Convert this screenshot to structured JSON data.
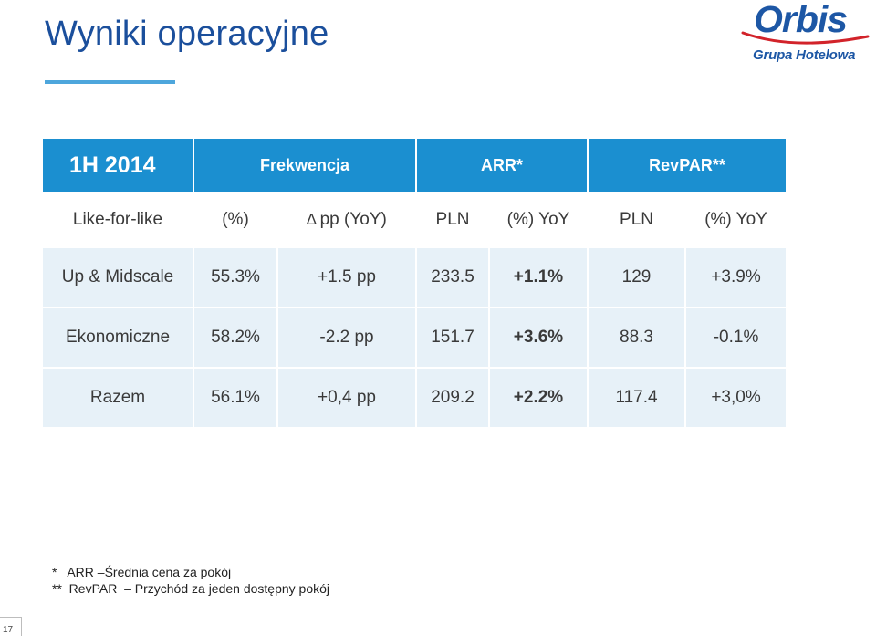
{
  "title": "Wyniki operacyjne",
  "logo": {
    "name": "Orbis",
    "subtitle": "Grupa Hotelowa"
  },
  "colors": {
    "title": "#1b4f9c",
    "accent_line": "#4da6dc",
    "header_bg": "#1b8fd0",
    "row_bg": "#e7f1f8",
    "logo_blue": "#1d57a5",
    "logo_red": "#d2232a"
  },
  "table": {
    "period": "1H 2014",
    "groups": [
      "Frekwencja",
      "ARR*",
      "RevPAR**"
    ],
    "subheader": {
      "segment_label": "Like-for-like",
      "columns": [
        "(%)",
        "pp (YoY)",
        "PLN",
        "(%) YoY",
        "PLN",
        "(%) YoY"
      ]
    },
    "rows": [
      {
        "segment": "Up & Midscale",
        "values": [
          "55.3%",
          "+1.5 pp",
          "233.5",
          "+1.1%",
          "129",
          "+3.9%"
        ]
      },
      {
        "segment": "Ekonomiczne",
        "values": [
          "58.2%",
          "-2.2 pp",
          "151.7",
          "+3.6%",
          "88.3",
          "-0.1%"
        ]
      },
      {
        "segment": "Razem",
        "values": [
          "56.1%",
          "+0,4 pp",
          "209.2",
          "+2.2%",
          "117.4",
          "+3,0%"
        ]
      }
    ]
  },
  "footnotes": [
    "*   ARR –Średnia cena za pokój",
    "**  RevPAR  – Przychód za jeden dostępny pokój"
  ],
  "page_number": "17"
}
